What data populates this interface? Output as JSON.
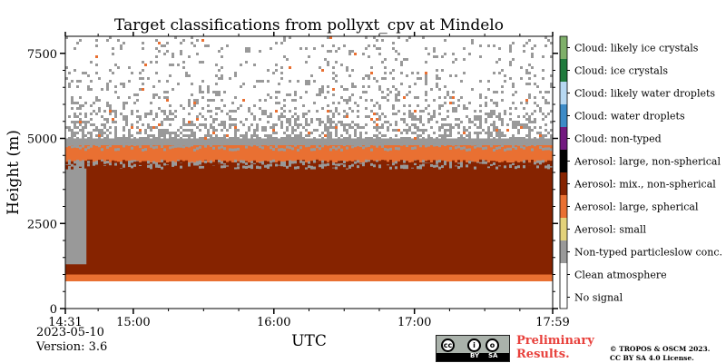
{
  "chart_data": {
    "type": "heatmap",
    "title": "Target classifications from pollyxt_cpv at Mindelo",
    "xlabel": "UTC",
    "ylabel": "Height (m)",
    "x_range": [
      "14:31",
      "17:59"
    ],
    "x_ticks": [
      "14:31",
      "15:00",
      "16:00",
      "17:00",
      "17:59"
    ],
    "y_range": [
      0,
      8000
    ],
    "y_ticks": [
      "0",
      "2500",
      "5000",
      "7500"
    ],
    "legend_placement": "right colorbar",
    "classes": [
      {
        "label": "No signal",
        "color": "#ffffff"
      },
      {
        "label": "Clean atmosphere",
        "color": "#ffffff"
      },
      {
        "label": "Non-typed particleslow conc.",
        "color": "#999999"
      },
      {
        "label": "Aerosol: small",
        "color": "#e3d27a"
      },
      {
        "label": "Aerosol: large, spherical",
        "color": "#e97032"
      },
      {
        "label": "Aerosol: mix., non-spherical",
        "color": "#862300"
      },
      {
        "label": "Aerosol: large, non-spherical",
        "color": "#000000"
      },
      {
        "label": "Cloud: non-typed",
        "color": "#731a80"
      },
      {
        "label": "Cloud: water droplets",
        "color": "#3d8bc7"
      },
      {
        "label": "Cloud: likely water droplets",
        "color": "#b7d8f2"
      },
      {
        "label": "Cloud: ice crystals",
        "color": "#1f7a3c"
      },
      {
        "label": "Cloud: likely ice crystals",
        "color": "#7fb06a"
      }
    ],
    "layers": [
      {
        "class": "Aerosol: large, spherical",
        "height_range_m": [
          800,
          1000
        ],
        "time_range": [
          "14:31",
          "17:59"
        ]
      },
      {
        "class": "Aerosol: mix., non-spherical",
        "height_range_m": [
          1000,
          4300
        ],
        "time_range": [
          "14:31",
          "17:59"
        ]
      },
      {
        "class": "Non-typed particleslow conc.",
        "height_range_m": [
          1300,
          4300
        ],
        "time_range": [
          "14:31",
          "14:40"
        ]
      },
      {
        "class": "Aerosol: large, spherical",
        "height_range_m": [
          4300,
          4800
        ],
        "time_range": [
          "14:31",
          "17:59"
        ]
      },
      {
        "class": "Non-typed particleslow conc.",
        "height_range_m": [
          4800,
          5000
        ],
        "time_range": [
          "14:31",
          "17:59"
        ]
      },
      {
        "class": "Non-typed particleslow conc.",
        "height_range_m": [
          5000,
          8000
        ],
        "time_range": [
          "14:31",
          "17:59"
        ],
        "note": "sparse"
      }
    ]
  },
  "footer": {
    "date": "2023-05-10",
    "version": "Version: 3.6",
    "preliminary_line1": "Preliminary",
    "preliminary_line2": "Results.",
    "copyright_line1": "© TROPOS & OSCM 2023.",
    "copyright_line2": "CC BY SA 4.0 License.",
    "license_badge": {
      "by": "BY",
      "sa": "SA"
    }
  }
}
